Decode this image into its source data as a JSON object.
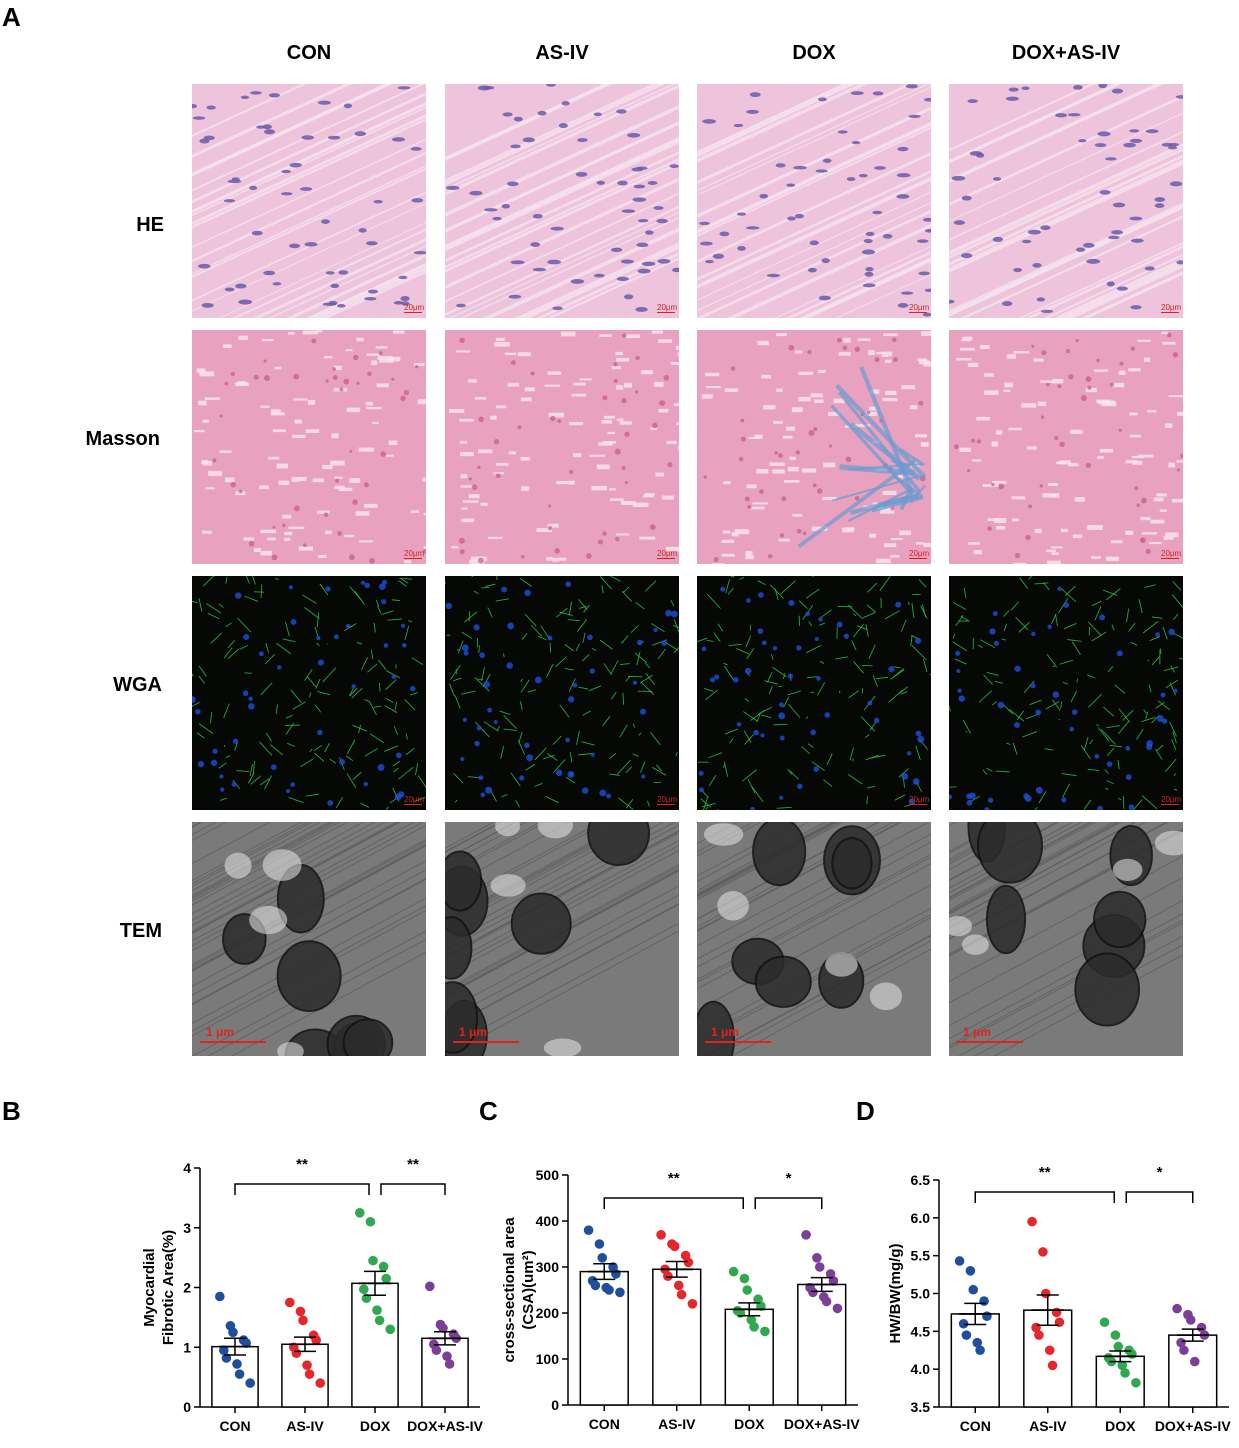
{
  "figure": {
    "panel_a_letter": "A",
    "panel_b_letter": "B",
    "panel_c_letter": "C",
    "panel_d_letter": "D",
    "columns": [
      "CON",
      "AS-IV",
      "DOX",
      "DOX+AS-IV"
    ],
    "rows": [
      "HE",
      "Masson",
      "WGA",
      "TEM"
    ],
    "scalebar_labels": {
      "he": "20μm",
      "masson": "20μm",
      "wga": "20μm",
      "tem": "1 μm"
    }
  },
  "colors": {
    "con": "#1f4e9c",
    "asiv": "#e5262a",
    "dox": "#2fa84f",
    "doxasiv": "#7b3f98",
    "he_bg": "#eec3dc",
    "masson_bg": "#e8a2c0",
    "wga_bg": "#050805",
    "tem_bg": "#7a7a7a"
  },
  "chart_data": [
    {
      "type": "bar",
      "panel": "B",
      "categories": [
        "CON",
        "AS-IV",
        "DOX",
        "DOX+AS-IV"
      ],
      "ylabel": "Myocardial Fibrotic Area(%)",
      "ylabel_lines": [
        "Myocardial",
        "Fibrotic Area(%)"
      ],
      "ylim": [
        0,
        4
      ],
      "yticks": [
        "0",
        "1",
        "2",
        "3",
        "4"
      ],
      "means": [
        1.01,
        1.05,
        2.07,
        1.15
      ],
      "sem": [
        0.14,
        0.12,
        0.2,
        0.11
      ],
      "points": [
        [
          1.85,
          1.36,
          1.25,
          1.12,
          1.07,
          0.95,
          0.82,
          0.72,
          0.55,
          0.4
        ],
        [
          1.75,
          1.6,
          1.45,
          1.2,
          1.12,
          1.0,
          0.9,
          0.7,
          0.55,
          0.4
        ],
        [
          3.25,
          3.1,
          2.45,
          2.35,
          2.15,
          1.97,
          1.82,
          1.62,
          1.45,
          1.3
        ],
        [
          2.02,
          1.38,
          1.32,
          1.22,
          1.15,
          1.05,
          0.95,
          0.85,
          0.72
        ]
      ],
      "significance": [
        {
          "from": 0,
          "to": 2,
          "label": "**"
        },
        {
          "from": 2,
          "to": 3,
          "label": "**"
        }
      ],
      "grid": false
    },
    {
      "type": "bar",
      "panel": "C",
      "categories": [
        "CON",
        "AS-IV",
        "DOX",
        "DOX+AS-IV"
      ],
      "ylabel": "cross-sectional area (CSA)(um²)",
      "ylabel_lines": [
        "cross-sectional area",
        "(CSA)(um²)"
      ],
      "ylim": [
        0,
        500
      ],
      "yticks": [
        "0",
        "100",
        "200",
        "300",
        "400",
        "500"
      ],
      "means": [
        290,
        295,
        208,
        262
      ],
      "sem": [
        17,
        17,
        14,
        15
      ],
      "points": [
        [
          380,
          350,
          320,
          300,
          285,
          270,
          260,
          255,
          250,
          245
        ],
        [
          370,
          350,
          345,
          325,
          310,
          295,
          280,
          260,
          240,
          220
        ],
        [
          290,
          275,
          250,
          230,
          215,
          205,
          200,
          185,
          170,
          160
        ],
        [
          370,
          320,
          300,
          285,
          270,
          255,
          245,
          235,
          225,
          210
        ]
      ],
      "significance": [
        {
          "from": 0,
          "to": 2,
          "label": "**"
        },
        {
          "from": 2,
          "to": 3,
          "label": "*"
        }
      ],
      "grid": false
    },
    {
      "type": "bar",
      "panel": "D",
      "categories": [
        "CON",
        "AS-IV",
        "DOX",
        "DOX+AS-IV"
      ],
      "ylabel": "HW/BW(mg/g)",
      "ylabel_lines": [
        "HW/BW(mg/g)"
      ],
      "ylim": [
        3.5,
        6.5
      ],
      "yticks": [
        "3.5",
        "4.0",
        "4.5",
        "5.0",
        "5.5",
        "6.0",
        "6.5"
      ],
      "means": [
        4.73,
        4.78,
        4.17,
        4.45
      ],
      "sem": [
        0.14,
        0.2,
        0.07,
        0.08
      ],
      "points": [
        [
          5.43,
          5.3,
          5.05,
          4.9,
          4.7,
          4.6,
          4.45,
          4.35,
          4.25
        ],
        [
          5.95,
          5.55,
          5.0,
          4.75,
          4.62,
          4.55,
          4.45,
          4.25,
          4.05
        ],
        [
          4.62,
          4.45,
          4.3,
          4.25,
          4.2,
          4.15,
          4.1,
          4.05,
          3.95,
          3.82
        ],
        [
          4.8,
          4.72,
          4.65,
          4.55,
          4.45,
          4.35,
          4.25,
          4.1
        ]
      ],
      "significance": [
        {
          "from": 0,
          "to": 2,
          "label": "**"
        },
        {
          "from": 2,
          "to": 3,
          "label": "*"
        }
      ],
      "grid": false
    }
  ]
}
